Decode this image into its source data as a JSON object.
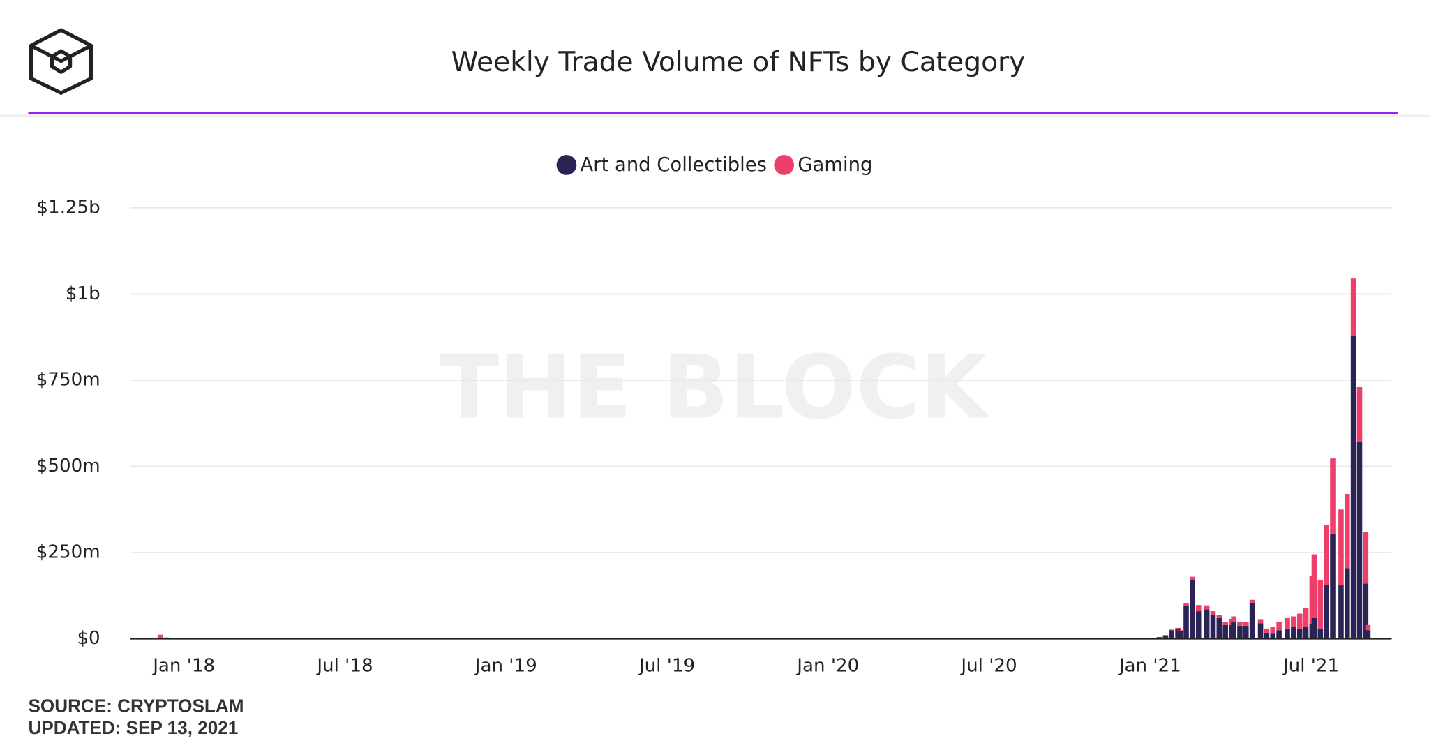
{
  "chart_data": {
    "type": "stacked_bar",
    "title": "Weekly Trade Volume of NFTs by Category",
    "watermark": "THE BLOCK",
    "source": "SOURCE: CRYPTOSLAM",
    "updated": "UPDATED: SEP 13, 2021",
    "x": [
      "2017-12",
      "2017-12",
      "2021-01",
      "2021-01",
      "2021-01",
      "2021-01",
      "2021-01",
      "2021-02",
      "2021-02",
      "2021-02",
      "2021-02",
      "2021-03",
      "2021-03",
      "2021-03",
      "2021-03",
      "2021-03",
      "2021-04",
      "2021-04",
      "2021-04",
      "2021-04",
      "2021-05",
      "2021-05",
      "2021-05",
      "2021-05",
      "2021-06",
      "2021-06",
      "2021-06",
      "2021-06",
      "2021-06",
      "2021-07",
      "2021-07",
      "2021-07",
      "2021-07",
      "2021-08",
      "2021-08",
      "2021-08",
      "2021-08",
      "2021-08",
      "2021-09"
    ],
    "series": [
      {
        "name": "Art and Collectibles",
        "color": "#2a2356",
        "values": [
          2,
          1,
          3,
          5,
          10,
          25,
          30,
          22,
          95,
          170,
          80,
          85,
          70,
          60,
          40,
          40,
          50,
          38,
          38,
          105,
          45,
          18,
          15,
          25,
          30,
          35,
          28,
          35,
          42,
          60,
          30,
          155,
          305,
          155,
          205,
          880,
          570,
          160,
          25
        ]
      },
      {
        "name": "Gaming",
        "color": "#ee3f6b",
        "values": [
          10,
          3,
          0,
          0,
          1,
          2,
          2,
          3,
          8,
          10,
          18,
          12,
          10,
          8,
          8,
          18,
          15,
          12,
          10,
          8,
          12,
          12,
          20,
          25,
          30,
          30,
          45,
          55,
          140,
          185,
          140,
          175,
          218,
          220,
          215,
          165,
          160,
          150,
          15
        ]
      }
    ],
    "xlim": [
      "2017-11",
      "2021-10"
    ],
    "xticks": [
      {
        "value": "2018-01",
        "label": "Jan '18"
      },
      {
        "value": "2018-07",
        "label": "Jul '18"
      },
      {
        "value": "2019-01",
        "label": "Jan '19"
      },
      {
        "value": "2019-07",
        "label": "Jul '19"
      },
      {
        "value": "2020-01",
        "label": "Jan '20"
      },
      {
        "value": "2020-07",
        "label": "Jul '20"
      },
      {
        "value": "2021-01",
        "label": "Jan '21"
      },
      {
        "value": "2021-07",
        "label": "Jul '21"
      }
    ],
    "ylim": [
      0,
      1250
    ],
    "yticks": [
      {
        "value": 0,
        "label": "$0"
      },
      {
        "value": 250,
        "label": "$250m"
      },
      {
        "value": 500,
        "label": "$500m"
      },
      {
        "value": 750,
        "label": "$750m"
      },
      {
        "value": 1000,
        "label": "$1b"
      },
      {
        "value": 1250,
        "label": "$1.25b"
      }
    ],
    "grid": true
  }
}
